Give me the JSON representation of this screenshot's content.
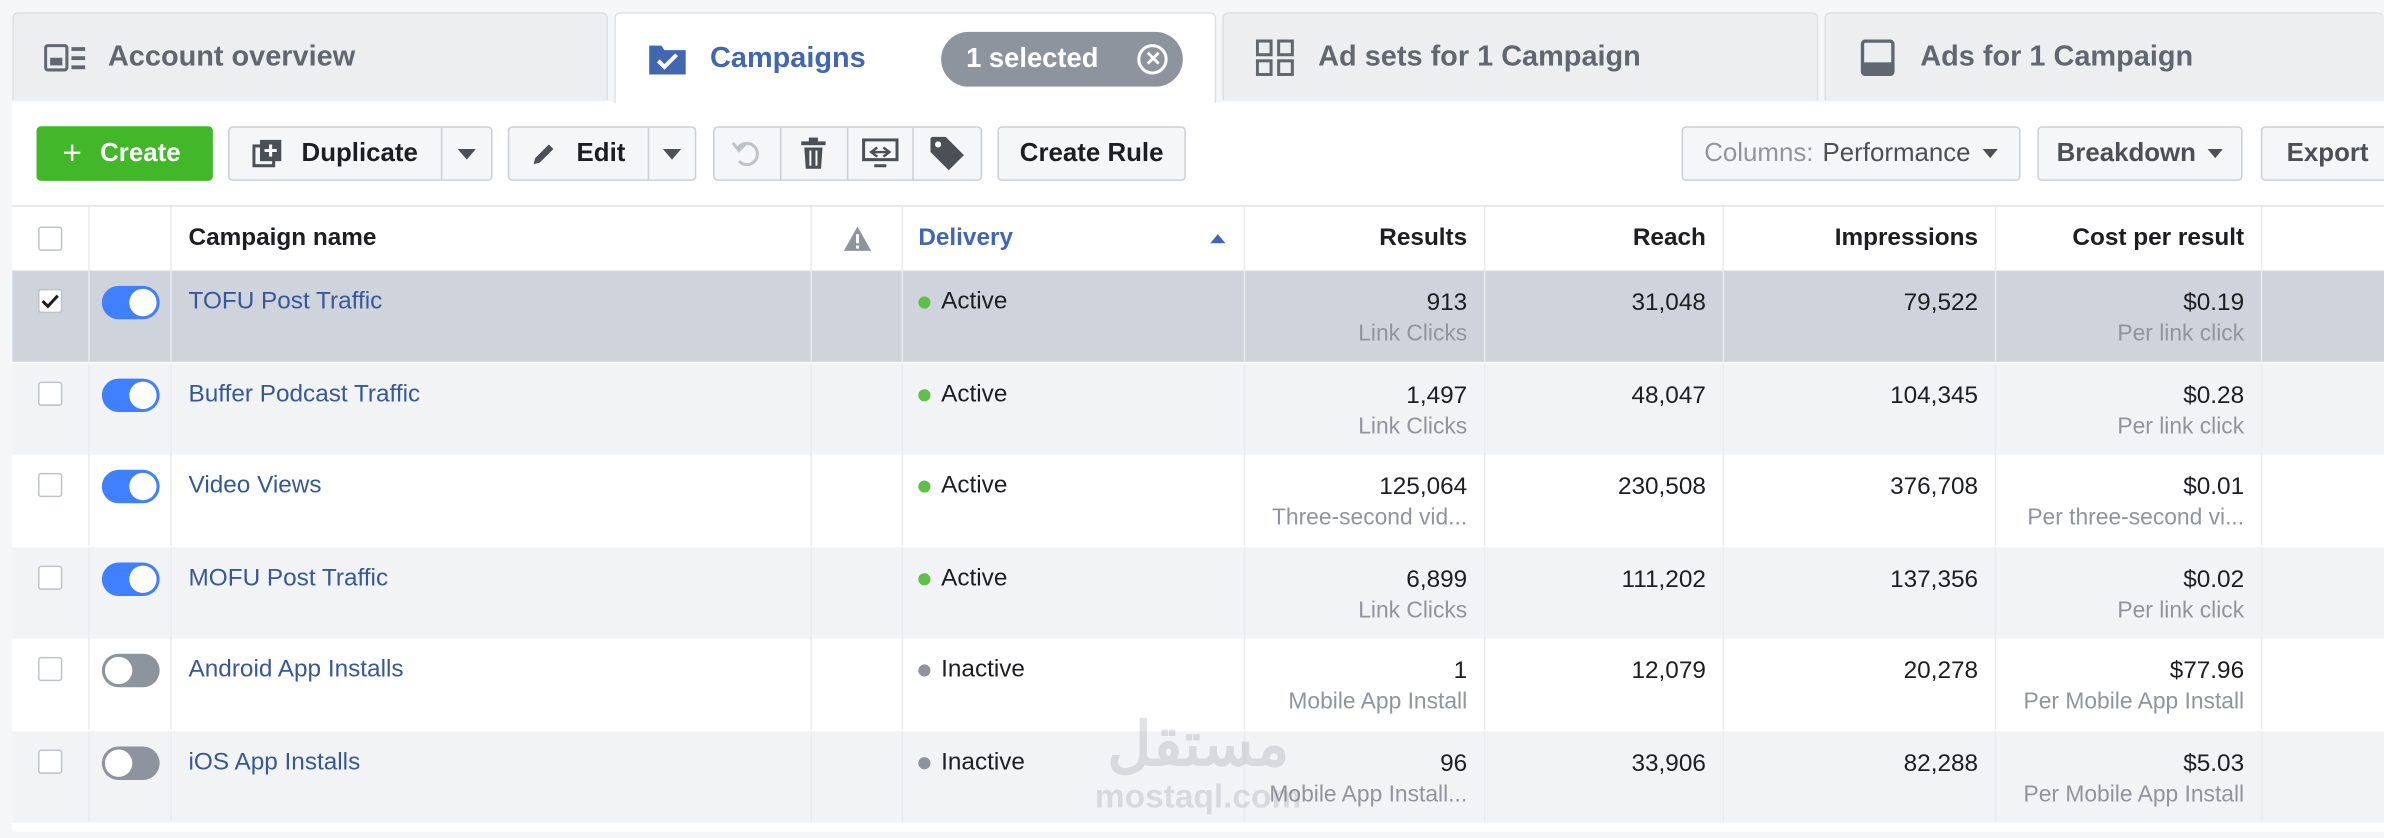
{
  "tabs": {
    "account": {
      "label": "Account overview"
    },
    "campaigns": {
      "label": "Campaigns",
      "selected_label": "1 selected"
    },
    "adsets": {
      "label": "Ad sets for 1 Campaign"
    },
    "ads": {
      "label": "Ads for 1 Campaign"
    }
  },
  "toolbar": {
    "create": "Create",
    "duplicate": "Duplicate",
    "edit": "Edit",
    "create_rule": "Create Rule",
    "columns_prefix": "Columns:",
    "columns_value": "Performance",
    "breakdown": "Breakdown",
    "export": "Export"
  },
  "table": {
    "headers": {
      "campaign_name": "Campaign name",
      "delivery": "Delivery",
      "results": "Results",
      "reach": "Reach",
      "impressions": "Impressions",
      "cost_per_result": "Cost per result"
    },
    "rows": [
      {
        "name": "TOFU Post Traffic",
        "delivery": "Active",
        "results": "913",
        "results_sub": "Link Clicks",
        "reach": "31,048",
        "impressions": "79,522",
        "cost": "$0.19",
        "cost_sub": "Per link click",
        "toggle_on": true,
        "checked": true
      },
      {
        "name": "Buffer Podcast Traffic",
        "delivery": "Active",
        "results": "1,497",
        "results_sub": "Link Clicks",
        "reach": "48,047",
        "impressions": "104,345",
        "cost": "$0.28",
        "cost_sub": "Per link click",
        "toggle_on": true,
        "checked": false
      },
      {
        "name": "Video Views",
        "delivery": "Active",
        "results": "125,064",
        "results_sub": "Three-second vid...",
        "reach": "230,508",
        "impressions": "376,708",
        "cost": "$0.01",
        "cost_sub": "Per three-second vi...",
        "toggle_on": true,
        "checked": false
      },
      {
        "name": "MOFU Post Traffic",
        "delivery": "Active",
        "results": "6,899",
        "results_sub": "Link Clicks",
        "reach": "111,202",
        "impressions": "137,356",
        "cost": "$0.02",
        "cost_sub": "Per link click",
        "toggle_on": true,
        "checked": false
      },
      {
        "name": "Android App Installs",
        "delivery": "Inactive",
        "results": "1",
        "results_sub": "Mobile App Install",
        "reach": "12,079",
        "impressions": "20,278",
        "cost": "$77.96",
        "cost_sub": "Per Mobile App Install",
        "toggle_on": false,
        "checked": false
      },
      {
        "name": "iOS App Installs",
        "delivery": "Inactive",
        "results": "96",
        "results_sub": "Mobile App Install...",
        "reach": "33,906",
        "impressions": "82,288",
        "cost": "$5.03",
        "cost_sub": "Per Mobile App Install",
        "toggle_on": false,
        "checked": false
      }
    ]
  },
  "watermark": {
    "arabic": "مستقل",
    "latin": "mostaql.com"
  },
  "colors": {
    "accent": "#4267b2",
    "link": "#365899",
    "create_green": "#42b72a",
    "toggle_on": "#4080ff",
    "toggle_off": "#8d949e",
    "active_dot": "#5fbf4a",
    "inactive_dot": "#8d949e",
    "selected_row_bg": "#cfd4dc",
    "alt_row_bg": "#f2f3f5"
  },
  "icons": {
    "account": "account-overview-icon",
    "campaigns": "campaign-folder-icon",
    "adsets": "adsets-grid-icon",
    "ads": "ad-icon",
    "warning": "warning-icon",
    "sort": "sort-ascending-icon"
  }
}
